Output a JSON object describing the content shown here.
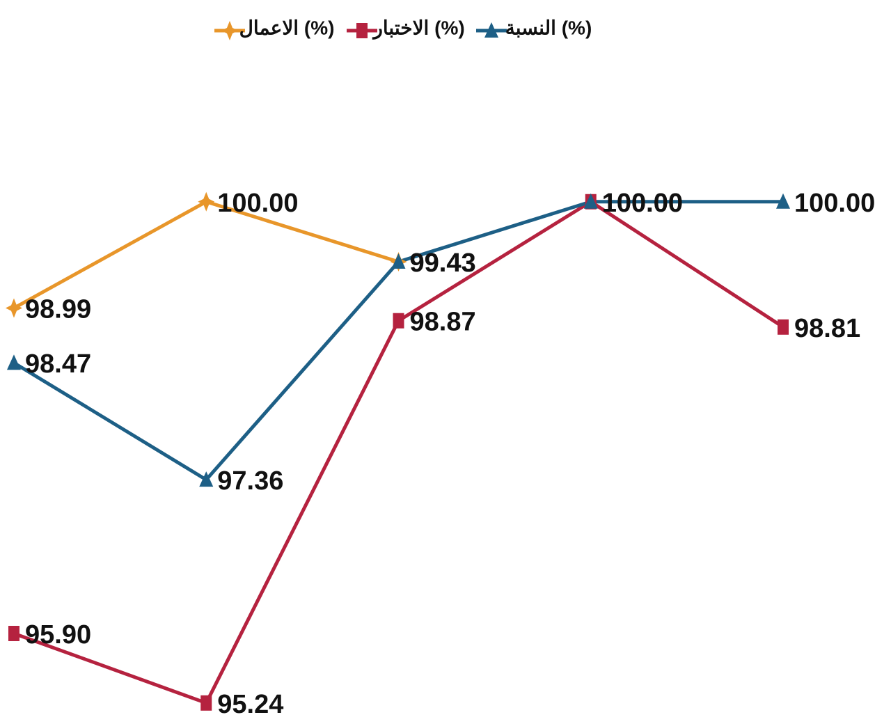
{
  "chart_data": {
    "type": "line",
    "categories": [
      null,
      null,
      null,
      null,
      null
    ],
    "ylim": [
      95.1,
      100.6
    ],
    "series": [
      {
        "name": "الاعمال (%)",
        "color": "#e8962a",
        "marker": "star",
        "values": [
          98.99,
          100,
          99.43,
          null,
          null
        ],
        "value_labels": [
          "98.99",
          "100.00",
          "99.43",
          null,
          null
        ]
      },
      {
        "name": "الاختبار (%)",
        "color": "#b5223f",
        "marker": "square",
        "values": [
          95.9,
          95.24,
          98.87,
          100,
          98.81
        ],
        "value_labels": [
          "95.90",
          "95.24",
          "98.87",
          "100.00",
          "98.81"
        ]
      },
      {
        "name": "النسبة (%)",
        "color": "#1d5f86",
        "marker": "triangle",
        "values": [
          98.47,
          97.36,
          99.43,
          100,
          100
        ],
        "value_labels": [
          "98.47",
          "97.36",
          "99.43",
          "100.00",
          "100.00"
        ]
      }
    ]
  }
}
